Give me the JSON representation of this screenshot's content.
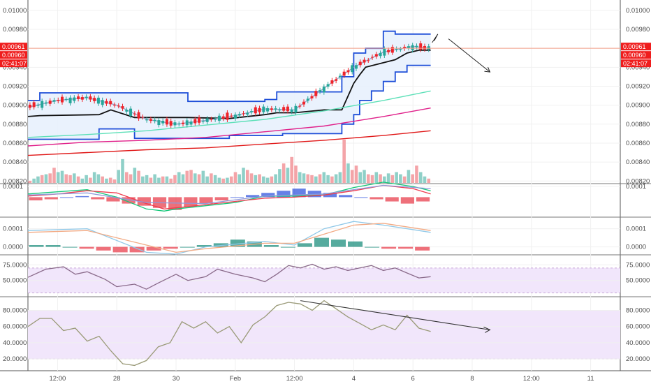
{
  "chart_data": {
    "type": "line",
    "theme": {
      "up_candle": "#26a69a",
      "down_candle": "#ef232a",
      "donchian_band": "#1d4ed8",
      "donchian_fill": "#e8f1fd",
      "price_line": "#f3a08a",
      "price_tag": "#ef1d1d"
    },
    "x_ticks": [
      "12:00",
      "28",
      "30",
      "Feb",
      "12:00",
      "4",
      "6",
      "8",
      "12:00",
      "11"
    ],
    "x_range": [
      0,
      100
    ],
    "panes": [
      {
        "id": "price",
        "ylim": [
          0.00818,
          0.01008
        ],
        "y_ticks": [
          "0.01000",
          "0.00980",
          "0.00960",
          "0.00940",
          "0.00920",
          "0.00900",
          "0.00880",
          "0.00860",
          "0.00840",
          "0.00820"
        ],
        "price_tags_left": [
          "0.00961",
          "0.00960",
          "02:41:07"
        ],
        "price_tags_right": [
          "0.00961",
          "0.00960",
          "02:41:07"
        ],
        "last_price": 0.0096,
        "series": [
          {
            "role": "donchian-upper",
            "x": [
              0,
              2,
              2,
              27,
              27,
              40,
              40,
              42,
              42,
              53,
              53,
              55,
              55,
              57,
              57,
              60,
              60,
              62,
              62,
              68,
              68
            ],
            "y": [
              0.00905,
              0.00905,
              0.00913,
              0.00913,
              0.00904,
              0.00904,
              0.00906,
              0.00906,
              0.00914,
              0.00914,
              0.0093,
              0.0093,
              0.00955,
              0.00955,
              0.0096,
              0.0096,
              0.00978,
              0.00978,
              0.00975,
              0.00975,
              0.00975
            ]
          },
          {
            "role": "donchian-lower",
            "x": [
              0,
              12,
              12,
              18,
              18,
              34,
              34,
              43,
              43,
              53,
              53,
              55,
              55,
              56,
              56,
              58,
              58,
              60,
              60,
              62,
              62,
              64,
              64,
              68
            ],
            "y": [
              0.00864,
              0.00864,
              0.00875,
              0.00875,
              0.00865,
              0.00865,
              0.00868,
              0.00868,
              0.0087,
              0.0087,
              0.0088,
              0.0088,
              0.0089,
              0.0089,
              0.00905,
              0.00905,
              0.00915,
              0.00915,
              0.00925,
              0.00925,
              0.00935,
              0.00935,
              0.00942,
              0.00942
            ]
          },
          {
            "role": "donchian-basis",
            "color": "#111111",
            "x": [
              0,
              2,
              12,
              14,
              18,
              27,
              34,
              40,
              42,
              45,
              50,
              53,
              55,
              56,
              57,
              62,
              64,
              66,
              68
            ],
            "y": [
              0.00888,
              0.00889,
              0.0089,
              0.00895,
              0.00887,
              0.00887,
              0.00886,
              0.0089,
              0.00892,
              0.00892,
              0.00895,
              0.00895,
              0.00923,
              0.00932,
              0.0094,
              0.00948,
              0.00955,
              0.00958,
              0.00958
            ]
          },
          {
            "role": "ma-short",
            "color": "#9aa3c8",
            "x": [
              0,
              5,
              10,
              15,
              20,
              25,
              30,
              35,
              40,
              45,
              50,
              55,
              60,
              65,
              68
            ],
            "y": [
              0.00898,
              0.00905,
              0.00908,
              0.009,
              0.00885,
              0.0088,
              0.00884,
              0.00889,
              0.00896,
              0.00895,
              0.00918,
              0.0094,
              0.00956,
              0.00962,
              0.0096
            ]
          },
          {
            "role": "ma-medium",
            "color": "#5de0b8",
            "x": [
              0,
              10,
              20,
              30,
              40,
              50,
              60,
              68
            ],
            "y": [
              0.00866,
              0.00869,
              0.00873,
              0.00879,
              0.00885,
              0.00894,
              0.00905,
              0.00915
            ]
          },
          {
            "role": "ma-long",
            "color": "#e0208a",
            "x": [
              0,
              10,
              20,
              30,
              40,
              50,
              60,
              68
            ],
            "y": [
              0.00857,
              0.00861,
              0.00863,
              0.00866,
              0.00872,
              0.00878,
              0.00888,
              0.00897
            ]
          },
          {
            "role": "ma-longest",
            "color": "#e01818",
            "x": [
              0,
              10,
              20,
              30,
              40,
              50,
              60,
              68
            ],
            "y": [
              0.00847,
              0.0085,
              0.00853,
              0.00855,
              0.00859,
              0.00863,
              0.00868,
              0.00873
            ]
          }
        ],
        "volume": {
          "ylim": [
            0,
            1
          ],
          "values": [
            0.05,
            0.1,
            0.15,
            0.18,
            0.2,
            0.22,
            0.35,
            0.25,
            0.28,
            0.2,
            0.18,
            0.22,
            0.15,
            0.1,
            0.18,
            0.12,
            0.25,
            0.2,
            0.15,
            0.1,
            0.12,
            0.08,
            0.3,
            0.55,
            0.25,
            0.2,
            0.35,
            0.28,
            0.15,
            0.18,
            0.12,
            0.2,
            0.12,
            0.15,
            0.15,
            0.1,
            0.18,
            0.25,
            0.2,
            0.28,
            0.3,
            0.22,
            0.2,
            0.28,
            0.15,
            0.22,
            0.18,
            0.12,
            0.1,
            0.12,
            0.15,
            0.25,
            0.2,
            0.35,
            0.3,
            0.22,
            0.18,
            0.2,
            0.15,
            0.12,
            0.15,
            0.2,
            0.32,
            0.45,
            0.35,
            0.6,
            0.4,
            0.25,
            0.22,
            0.2,
            0.18,
            0.15,
            0.2,
            0.25,
            0.18,
            0.15,
            0.2,
            0.25,
            1.0,
            0.45,
            0.3,
            0.4,
            0.25,
            0.3,
            0.2,
            0.18,
            0.25,
            0.2,
            0.15,
            0.22,
            0.18,
            0.25,
            0.2,
            0.15,
            0.3,
            0.2,
            0.4,
            0.25,
            0.15,
            0.1
          ]
        },
        "annotation": {
          "kind": "arrow",
          "from": [
            71,
            0.0097
          ],
          "to": [
            78,
            0.00935
          ]
        }
      },
      {
        "id": "oscillator-1",
        "ylim": [
          -0.00018,
          0.00012
        ],
        "y_ticks": [
          "0.0001"
        ],
        "tick_values": [
          0.0001
        ],
        "series": [
          {
            "color": "#16c77a",
            "x": [
              0,
              5,
              10,
              15,
              20,
              23,
              25,
              30,
              35,
              40,
              45,
              50,
              55,
              60,
              65,
              68
            ],
            "y": [
              3e-05,
              5e-05,
              7e-05,
              0.0,
              -0.00011,
              -0.00013,
              -0.00011,
              -8e-05,
              -5e-05,
              1e-05,
              1e-05,
              2e-05,
              9e-05,
              0.00014,
              0.0001,
              6e-05
            ]
          },
          {
            "color": "#ef3b4e",
            "x": [
              0,
              5,
              10,
              15,
              20,
              23,
              25,
              30,
              35,
              40,
              45,
              50,
              55,
              60,
              65,
              68
            ],
            "y": [
              1e-05,
              3e-05,
              6e-05,
              4e-05,
              -6e-05,
              -0.00011,
              -0.0001,
              -7e-05,
              -4e-05,
              -1e-05,
              0.0,
              2e-05,
              6e-05,
              0.00011,
              8e-05,
              3e-05
            ]
          },
          {
            "color": "#8f9bdb",
            "x": [
              0,
              10,
              20,
              30,
              40,
              50,
              60,
              68
            ],
            "y": [
              2e-05,
              4e-05,
              -5e-05,
              -6e-05,
              1e-05,
              3e-05,
              0.00011,
              8e-05
            ]
          }
        ],
        "histogram": [
          -3e-05,
          -2e-05,
          0.0,
          1e-05,
          -2e-05,
          -4e-05,
          -6e-05,
          -8e-05,
          -0.0001,
          -0.00012,
          -9e-05,
          -6e-05,
          -3e-05,
          0.0,
          2e-05,
          4e-05,
          6e-05,
          8e-05,
          6e-05,
          4e-05,
          2e-05,
          0.0,
          -2e-05,
          -4e-05,
          -6e-05,
          -4e-05
        ]
      },
      {
        "id": "oscillator-2",
        "ylim": [
          -4e-05,
          0.00016
        ],
        "y_ticks": [
          "0.0001",
          "0.0000"
        ],
        "tick_values": [
          0.0001,
          0.0
        ],
        "series": [
          {
            "color": "#8fc8e8",
            "x": [
              0,
              10,
              20,
              25,
              30,
              40,
              45,
              50,
              55,
              60,
              68
            ],
            "y": [
              9e-05,
              0.0001,
              -3e-05,
              -4e-05,
              0.0,
              3e-05,
              1e-05,
              0.0001,
              0.00014,
              0.00012,
              8e-05
            ]
          },
          {
            "color": "#f2aa84",
            "x": [
              0,
              10,
              20,
              25,
              30,
              40,
              45,
              50,
              55,
              60,
              68
            ],
            "y": [
              8e-05,
              9e-05,
              1e-05,
              -3e-05,
              -1e-05,
              2e-05,
              2e-05,
              7e-05,
              0.00012,
              0.00013,
              9e-05
            ]
          }
        ],
        "histogram": [
          1e-05,
          1e-05,
          0.0,
          -1e-05,
          -2e-05,
          -3e-05,
          -3e-05,
          -2e-05,
          -1e-05,
          0.0,
          1e-05,
          2e-05,
          4e-05,
          3e-05,
          1e-05,
          0.0,
          2e-05,
          5e-05,
          4e-05,
          3e-05,
          0.0,
          -1e-05,
          -1e-05,
          -2e-05
        ]
      },
      {
        "id": "rsi-1",
        "ylim": [
          25,
          90
        ],
        "y_ticks": [
          "75.0000",
          "50.0000"
        ],
        "tick_values": [
          75,
          50
        ],
        "band": [
          30,
          70
        ],
        "series": [
          {
            "color": "#8a6a8a",
            "x": [
              0,
              3,
              6,
              8,
              10,
              13,
              15,
              18,
              20,
              22,
              25,
              27,
              30,
              32,
              35,
              38,
              40,
              42,
              44,
              46,
              48,
              50,
              52,
              54,
              56,
              58,
              60,
              62,
              64,
              66,
              68
            ],
            "y": [
              55,
              68,
              72,
              60,
              64,
              52,
              40,
              44,
              36,
              46,
              60,
              50,
              56,
              68,
              60,
              54,
              48,
              60,
              74,
              70,
              76,
              68,
              72,
              66,
              70,
              74,
              66,
              70,
              62,
              54,
              56
            ]
          }
        ]
      },
      {
        "id": "rsi-2",
        "ylim": [
          8,
          96
        ],
        "y_ticks": [
          "80.0000",
          "60.0000",
          "40.0000",
          "20.0000"
        ],
        "tick_values": [
          80,
          60,
          40,
          20
        ],
        "band": [
          20,
          80
        ],
        "series": [
          {
            "color": "#9a9a78",
            "x": [
              0,
              2,
              4,
              6,
              8,
              10,
              12,
              14,
              16,
              18,
              20,
              22,
              24,
              26,
              28,
              30,
              32,
              34,
              36,
              38,
              40,
              42,
              44,
              46,
              48,
              50,
              52,
              54,
              56,
              58,
              60,
              62,
              64,
              66,
              68
            ],
            "y": [
              60,
              70,
              70,
              55,
              58,
              42,
              48,
              30,
              14,
              12,
              18,
              35,
              40,
              66,
              58,
              66,
              52,
              60,
              40,
              62,
              72,
              86,
              90,
              88,
              80,
              92,
              82,
              72,
              64,
              56,
              62,
              56,
              74,
              58,
              54
            ]
          }
        ],
        "annotation": {
          "kind": "trendline",
          "from": [
            46,
            92
          ],
          "to": [
            78,
            56
          ]
        }
      }
    ]
  }
}
